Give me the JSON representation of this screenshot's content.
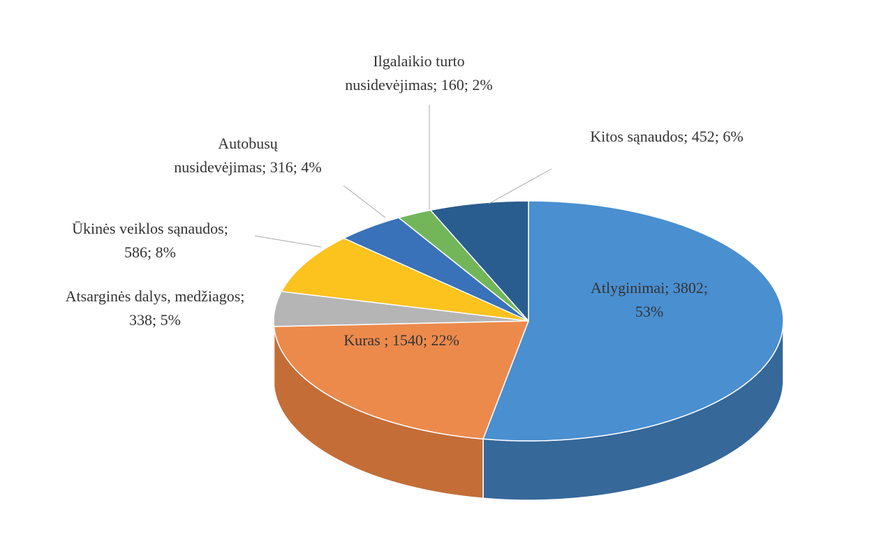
{
  "chart_data": {
    "type": "pie3d",
    "values": [
      3802,
      1540,
      338,
      586,
      316,
      160,
      452
    ],
    "value_labels": [
      [
        "Atlyginimai; 3802;",
        "53%"
      ],
      [
        "Kuras ; 1540; 22%"
      ],
      [
        "Atsarginės dalys, medžiagos;",
        "338; 5%"
      ],
      [
        "Ūkinės veiklos sąnaudos;",
        "586; 8%"
      ],
      [
        "Autobusų",
        "nusidevėjimas; 316; 4%"
      ],
      [
        "Ilgalaikio turto",
        "nusidevėjimas; 160; 2%"
      ],
      [
        "Kitos sąnaudos; 452; 6%"
      ]
    ],
    "colors": [
      "#4a8fd0",
      "#ec8a4c",
      "#b5b5b5",
      "#fcc21e",
      "#3972b8",
      "#73b65a",
      "#2a5d8f"
    ],
    "side_colors": [
      "#36689a",
      "#c46d37",
      "#8e8e8e",
      "#c99a16",
      "#2a5689",
      "#558a42",
      "#1f4569"
    ]
  }
}
